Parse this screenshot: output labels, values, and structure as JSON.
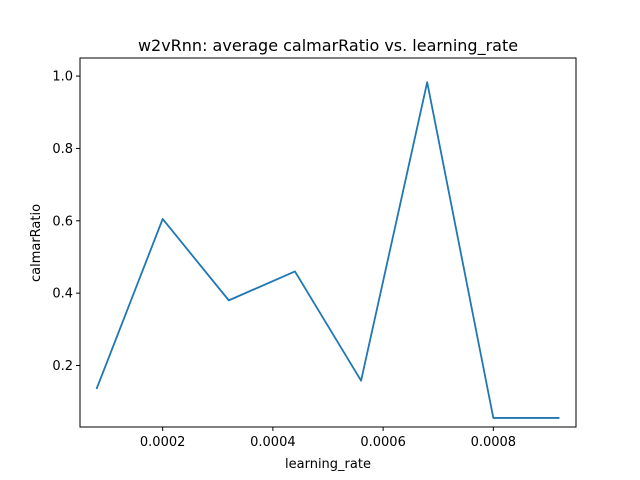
{
  "chart_data": {
    "type": "line",
    "title": "w2vRnn: average calmarRatio vs. learning_rate",
    "xlabel": "learning_rate",
    "ylabel": "calmarRatio",
    "xlim": [
      5e-05,
      0.00095
    ],
    "ylim": [
      0.03,
      1.05
    ],
    "x_ticks": [
      0.0002,
      0.0004,
      0.0006,
      0.0008
    ],
    "x_tick_labels": [
      "0.0002",
      "0.0004",
      "0.0006",
      "0.0008"
    ],
    "y_ticks": [
      0.2,
      0.4,
      0.6,
      0.8,
      1.0
    ],
    "y_tick_labels": [
      "0.2",
      "0.4",
      "0.6",
      "0.8",
      "1.0"
    ],
    "grid": false,
    "series": [
      {
        "color": "#1f77b4",
        "x": [
          8e-05,
          0.0002,
          0.00032,
          0.00044,
          0.00056,
          0.00068,
          0.0008,
          0.00092
        ],
        "y": [
          0.135,
          0.605,
          0.38,
          0.46,
          0.158,
          0.983,
          0.055,
          0.055
        ]
      }
    ]
  }
}
